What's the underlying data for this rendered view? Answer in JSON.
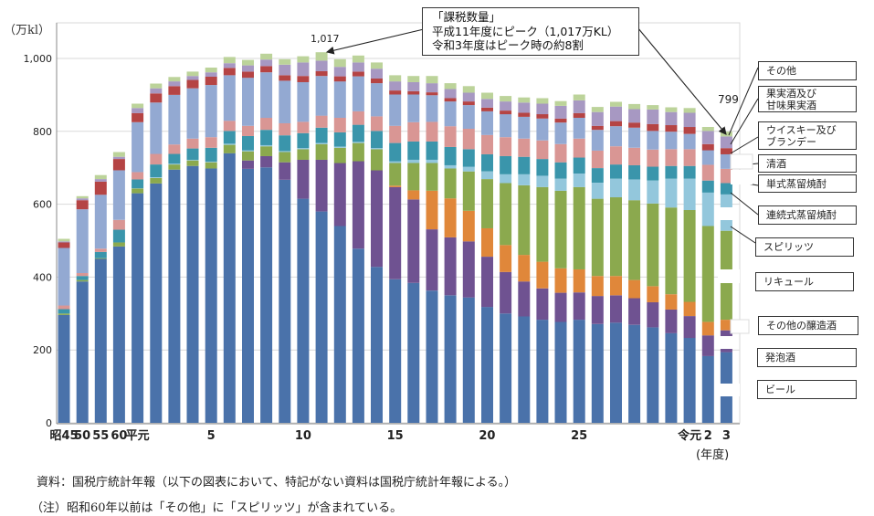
{
  "chart_data": {
    "type": "bar",
    "stacked": true,
    "ylabel": "（万kl）",
    "xlabel": "(年度)",
    "ylim": [
      0,
      1000
    ],
    "yticks": [
      "0",
      "200",
      "400",
      "600",
      "800",
      "1,000"
    ],
    "ytick_values": [
      0,
      200,
      400,
      600,
      800,
      1000
    ],
    "grid": true,
    "categories": [
      "昭45",
      "50",
      "55",
      "60",
      "平元",
      "",
      "",
      "",
      "5",
      "",
      "",
      "",
      "",
      "10",
      "",
      "",
      "",
      "",
      "15",
      "",
      "",
      "",
      "",
      "20",
      "",
      "",
      "",
      "",
      "25",
      "",
      "",
      "",
      "",
      "",
      "令元",
      "2",
      "3"
    ],
    "series": [
      {
        "name": "ビール",
        "color": "#4a72aa",
        "values": [
          296,
          388,
          450,
          484,
          630,
          657,
          695,
          705,
          698,
          740,
          697,
          701,
          667,
          615,
          580,
          540,
          478,
          428,
          394,
          384,
          363,
          350,
          344,
          318,
          300,
          292,
          283,
          277,
          283,
          271,
          275,
          269,
          262,
          246,
          233,
          183,
          194
        ]
      },
      {
        "name": "発泡酒",
        "color": "#6f5291",
        "values": [
          0,
          0,
          0,
          0,
          0,
          0,
          0,
          0,
          0,
          0,
          23,
          31,
          48,
          107,
          142,
          173,
          240,
          265,
          253,
          229,
          168,
          159,
          154,
          138,
          114,
          96,
          86,
          80,
          75,
          77,
          75,
          73,
          69,
          65,
          60,
          57,
          60
        ]
      },
      {
        "name": "その他の醸造酒",
        "color": "#e0873a",
        "values": [
          0,
          0,
          0,
          0,
          0,
          0,
          0,
          0,
          0,
          0,
          0,
          0,
          0,
          0,
          0,
          0,
          0,
          0,
          4,
          25,
          106,
          107,
          84,
          78,
          74,
          73,
          73,
          67,
          63,
          55,
          53,
          50,
          44,
          42,
          39,
          37,
          29
        ]
      },
      {
        "name": "リキュール",
        "color": "#8ba94e",
        "values": [
          4,
          4,
          2,
          11,
          13,
          15,
          14,
          15,
          17,
          23,
          25,
          27,
          28,
          29,
          43,
          42,
          50,
          58,
          62,
          75,
          76,
          82,
          108,
          135,
          170,
          191,
          205,
          213,
          226,
          212,
          216,
          219,
          227,
          238,
          252,
          263,
          244
        ]
      },
      {
        "name": "スピリッツ",
        "color": "#93c7dc",
        "values": [
          0,
          0,
          0,
          0,
          1,
          2,
          2,
          2,
          2,
          3,
          3,
          3,
          3,
          3,
          3,
          3,
          3,
          3,
          5,
          9,
          9,
          9,
          13,
          21,
          24,
          30,
          31,
          33,
          37,
          44,
          51,
          57,
          63,
          79,
          86,
          92,
          100
        ]
      },
      {
        "name": "連続式蒸留焼酎",
        "color": "#3a95ab",
        "values": [
          12,
          11,
          17,
          35,
          24,
          35,
          27,
          31,
          38,
          35,
          39,
          42,
          43,
          41,
          42,
          39,
          47,
          47,
          50,
          50,
          50,
          50,
          48,
          47,
          50,
          48,
          46,
          45,
          44,
          40,
          39,
          39,
          38,
          35,
          35,
          33,
          31
        ]
      },
      {
        "name": "単式蒸留焼酎",
        "color": "#d99694",
        "values": [
          10,
          8,
          9,
          27,
          20,
          29,
          26,
          27,
          29,
          28,
          28,
          33,
          33,
          31,
          33,
          40,
          37,
          40,
          47,
          53,
          54,
          57,
          56,
          53,
          52,
          50,
          51,
          50,
          52,
          48,
          50,
          48,
          47,
          46,
          46,
          43,
          39
        ]
      },
      {
        "name": "清酒",
        "color": "#93a9d2",
        "values": [
          158,
          175,
          148,
          136,
          137,
          141,
          136,
          138,
          143,
          125,
          132,
          125,
          117,
          109,
          109,
          100,
          96,
          91,
          86,
          76,
          73,
          68,
          65,
          65,
          63,
          60,
          60,
          59,
          57,
          57,
          55,
          55,
          51,
          48,
          42,
          40,
          40
        ]
      },
      {
        "name": "ウイスキー及びブランデー",
        "color": "#b54444",
        "values": [
          15,
          25,
          36,
          31,
          25,
          25,
          24,
          23,
          23,
          20,
          17,
          17,
          15,
          17,
          13,
          14,
          13,
          13,
          11,
          9,
          8,
          9,
          10,
          10,
          10,
          11,
          12,
          11,
          13,
          11,
          14,
          14,
          19,
          18,
          19,
          17,
          17
        ]
      },
      {
        "name": "果実酒及び甘味果実酒",
        "color": "#a798c2",
        "values": [
          3,
          5,
          7,
          6,
          14,
          14,
          13,
          11,
          12,
          13,
          17,
          18,
          29,
          37,
          29,
          26,
          25,
          27,
          25,
          25,
          25,
          25,
          24,
          24,
          25,
          28,
          29,
          35,
          35,
          38,
          40,
          37,
          40,
          36,
          39,
          36,
          32
        ]
      },
      {
        "name": "その他",
        "color": "#bcd39a",
        "values": [
          7,
          6,
          11,
          13,
          12,
          13,
          12,
          12,
          13,
          17,
          15,
          16,
          15,
          17,
          23,
          21,
          19,
          17,
          17,
          17,
          20,
          16,
          18,
          17,
          15,
          14,
          15,
          13,
          16,
          14,
          13,
          14,
          12,
          13,
          13,
          11,
          13
        ]
      }
    ],
    "data_labels": {
      "peak": "1,017",
      "total_latest": "799",
      "sake_latest": "40",
      "tanshiki_latest": "39",
      "spirits_latest": "100",
      "liqueur_latest": "244",
      "other_brewed_latest": "29",
      "happoshu_latest": "60",
      "beer_latest": "194"
    },
    "callout": {
      "line1": "「課税数量」",
      "line2": "平成11年度にピーク（1,017万KL）",
      "line3": "令和3年度はピーク時の約8割"
    }
  },
  "legend_labels": {
    "other": "その他",
    "fruit_line1": "果実酒及び",
    "fruit_line2": "甘味果実酒",
    "whisky_line1": "ウイスキー及び",
    "whisky_line2": "ブランデー",
    "sake": "清酒",
    "tanshiki": "単式蒸留焼酎",
    "renzoku": "連続式蒸留焼酎",
    "spirits": "スピリッツ",
    "liqueur": "リキュール",
    "other_brewed": "その他の醸造酒",
    "happoshu": "発泡酒",
    "beer": "ビール"
  },
  "notes": {
    "source": "資料：国税庁統計年報（以下の図表において、特記がない資料は国税庁統計年報による。）",
    "note": "（注）昭和60年以前は「その他」に「スピリッツ」が含まれている。"
  }
}
